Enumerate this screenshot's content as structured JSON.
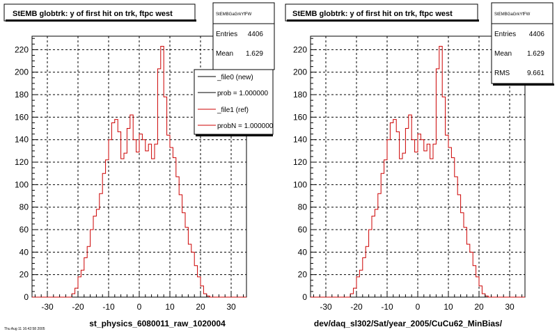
{
  "panels": [
    {
      "title": "StEMB globtrk: y of first hit on trk, ftpc west",
      "xlabel": "st_physics_6080011_raw_1020004",
      "stats": {
        "name": "StEMBGaGrkYfFW",
        "rows": [
          {
            "label": "Entries",
            "value": "4406"
          },
          {
            "label": "Mean",
            "value": "1.629"
          }
        ]
      },
      "legend": [
        {
          "label": "_file0 (new)",
          "color": "#000000"
        },
        {
          "label": "prob = 1.000000",
          "color": "#000000"
        },
        {
          "label": "_file1 (ref)",
          "color": "#cc0000"
        },
        {
          "label": "probN = 1.000000",
          "color": "#cc0000"
        }
      ]
    },
    {
      "title": "StEMB globtrk: y of first hit on trk, ftpc west",
      "xlabel": "dev/daq_sl302/Sat/year_2005/CuCu62_MinBias/",
      "stats": {
        "name": "StEMBGaGrkYfFW",
        "rows": [
          {
            "label": "Entries",
            "value": "4406"
          },
          {
            "label": "Mean",
            "value": "1.629"
          },
          {
            "label": "RMS",
            "value": "9.661"
          }
        ]
      }
    }
  ],
  "footer_text": "Thu Aug 11 16:42:58 2005",
  "chart_data": [
    {
      "type": "bar",
      "title": "StEMB globtrk: y of first hit on trk, ftpc west",
      "xlabel": "st_physics_6080011_raw_1020004",
      "ylabel": "",
      "xlim": [
        -35,
        35
      ],
      "ylim": [
        0,
        232
      ],
      "xticks": [
        -30,
        -20,
        -10,
        0,
        10,
        20,
        30
      ],
      "yticks": [
        0,
        20,
        40,
        60,
        80,
        100,
        120,
        140,
        160,
        180,
        200,
        220
      ],
      "grid": true,
      "legend_position": "top-right",
      "bin_edges": [
        -35,
        -34,
        -33,
        -32,
        -31,
        -30,
        -29,
        -28,
        -27,
        -26,
        -25,
        -24,
        -23,
        -22,
        -21,
        -20,
        -19,
        -18,
        -17,
        -16,
        -15,
        -14,
        -13,
        -12,
        -11,
        -10,
        -9,
        -8,
        -7,
        -6,
        -5,
        -4,
        -3,
        -2,
        -1,
        0,
        1,
        2,
        3,
        4,
        5,
        6,
        7,
        8,
        9,
        10,
        11,
        12,
        13,
        14,
        15,
        16,
        17,
        18,
        19,
        20,
        21,
        22,
        23,
        24,
        25,
        26,
        27,
        28,
        29,
        30,
        31,
        32,
        33,
        34,
        35
      ],
      "series": [
        {
          "name": "_file1 (ref)",
          "color": "#cc0000",
          "values": [
            0,
            0,
            0,
            0,
            0,
            0,
            0,
            0,
            0,
            0,
            0,
            0,
            0,
            3,
            8,
            18,
            24,
            35,
            45,
            60,
            72,
            78,
            92,
            110,
            122,
            140,
            155,
            158,
            147,
            123,
            128,
            150,
            162,
            140,
            129,
            145,
            140,
            130,
            136,
            123,
            136,
            203,
            223,
            178,
            144,
            133,
            124,
            107,
            91,
            75,
            62,
            47,
            40,
            28,
            18,
            10,
            3,
            1,
            0,
            0,
            0,
            0,
            0,
            0,
            0,
            0,
            0,
            0,
            0,
            0
          ]
        },
        {
          "name": "_file0 (new)",
          "color": "#000000",
          "values": [
            0,
            0,
            0,
            0,
            0,
            0,
            0,
            0,
            0,
            0,
            0,
            0,
            0,
            3,
            8,
            18,
            24,
            35,
            45,
            60,
            72,
            78,
            92,
            110,
            122,
            140,
            155,
            158,
            147,
            123,
            128,
            150,
            162,
            140,
            129,
            145,
            140,
            130,
            136,
            123,
            136,
            203,
            223,
            178,
            144,
            133,
            124,
            107,
            91,
            75,
            62,
            47,
            40,
            28,
            18,
            10,
            3,
            1,
            0,
            0,
            0,
            0,
            0,
            0,
            0,
            0,
            0,
            0,
            0,
            0
          ]
        }
      ]
    },
    {
      "type": "bar",
      "title": "StEMB globtrk: y of first hit on trk, ftpc west",
      "xlabel": "dev/daq_sl302/Sat/year_2005/CuCu62_MinBias/",
      "ylabel": "",
      "xlim": [
        -35,
        35
      ],
      "ylim": [
        0,
        232
      ],
      "xticks": [
        -30,
        -20,
        -10,
        0,
        10,
        20,
        30
      ],
      "yticks": [
        0,
        20,
        40,
        60,
        80,
        100,
        120,
        140,
        160,
        180,
        200,
        220
      ],
      "grid": true,
      "bin_edges": [
        -35,
        -34,
        -33,
        -32,
        -31,
        -30,
        -29,
        -28,
        -27,
        -26,
        -25,
        -24,
        -23,
        -22,
        -21,
        -20,
        -19,
        -18,
        -17,
        -16,
        -15,
        -14,
        -13,
        -12,
        -11,
        -10,
        -9,
        -8,
        -7,
        -6,
        -5,
        -4,
        -3,
        -2,
        -1,
        0,
        1,
        2,
        3,
        4,
        5,
        6,
        7,
        8,
        9,
        10,
        11,
        12,
        13,
        14,
        15,
        16,
        17,
        18,
        19,
        20,
        21,
        22,
        23,
        24,
        25,
        26,
        27,
        28,
        29,
        30,
        31,
        32,
        33,
        34,
        35
      ],
      "series": [
        {
          "name": "",
          "color": "#cc0000",
          "values": [
            0,
            0,
            0,
            0,
            0,
            0,
            0,
            0,
            0,
            0,
            0,
            0,
            0,
            3,
            8,
            18,
            24,
            35,
            45,
            60,
            72,
            78,
            92,
            110,
            122,
            140,
            155,
            158,
            147,
            123,
            128,
            150,
            162,
            140,
            129,
            145,
            140,
            130,
            136,
            123,
            136,
            203,
            223,
            178,
            144,
            133,
            124,
            107,
            91,
            75,
            62,
            47,
            40,
            28,
            18,
            10,
            3,
            1,
            0,
            0,
            0,
            0,
            0,
            0,
            0,
            0,
            0,
            0,
            0,
            0
          ]
        }
      ]
    }
  ]
}
